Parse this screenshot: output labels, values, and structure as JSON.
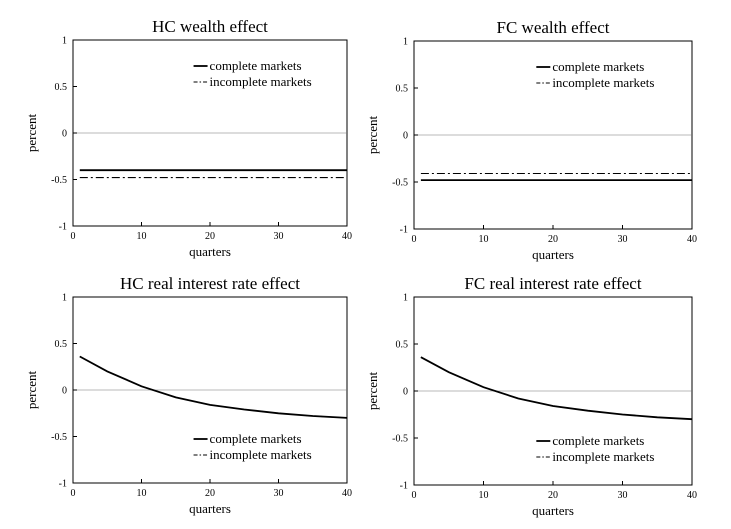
{
  "chart_data": [
    {
      "type": "line",
      "title": "HC wealth effect",
      "xlabel": "quarters",
      "ylabel": "percent",
      "xlim": [
        0,
        40
      ],
      "ylim": [
        -1,
        1
      ],
      "xticks": [
        "0",
        "10",
        "20",
        "30",
        "40"
      ],
      "yticks": [
        "-1",
        "-0.5",
        "0",
        "0.5",
        "1"
      ],
      "legend_position": "top-right",
      "series": [
        {
          "name": "complete markets",
          "style": "solid",
          "x": [
            1,
            40
          ],
          "values": [
            -0.4,
            -0.4
          ]
        },
        {
          "name": "incomplete markets",
          "style": "dashdot",
          "x": [
            1,
            40
          ],
          "values": [
            -0.48,
            -0.48
          ]
        }
      ]
    },
    {
      "type": "line",
      "title": "FC wealth effect",
      "xlabel": "quarters",
      "ylabel": "percent",
      "xlim": [
        0,
        40
      ],
      "ylim": [
        -1,
        1
      ],
      "xticks": [
        "0",
        "10",
        "20",
        "30",
        "40"
      ],
      "yticks": [
        "-1",
        "-0.5",
        "0",
        "0.5",
        "1"
      ],
      "legend_position": "top-right",
      "series": [
        {
          "name": "complete markets",
          "style": "solid",
          "x": [
            1,
            40
          ],
          "values": [
            -0.48,
            -0.48
          ]
        },
        {
          "name": "incomplete markets",
          "style": "dashdot",
          "x": [
            1,
            40
          ],
          "values": [
            -0.41,
            -0.41
          ]
        }
      ]
    },
    {
      "type": "line",
      "title": "HC real interest rate effect",
      "xlabel": "quarters",
      "ylabel": "percent",
      "xlim": [
        0,
        40
      ],
      "ylim": [
        -1,
        1
      ],
      "xticks": [
        "0",
        "10",
        "20",
        "30",
        "40"
      ],
      "yticks": [
        "-1",
        "-0.5",
        "0",
        "0.5",
        "1"
      ],
      "legend_position": "bottom-right",
      "series": [
        {
          "name": "complete markets",
          "style": "solid",
          "x": [
            1,
            5,
            10,
            15,
            20,
            25,
            30,
            35,
            40
          ],
          "values": [
            0.36,
            0.2,
            0.04,
            -0.08,
            -0.16,
            -0.21,
            -0.25,
            -0.28,
            -0.3
          ]
        },
        {
          "name": "incomplete markets",
          "style": "dashdot",
          "x": [
            1,
            5,
            10,
            15,
            20,
            25,
            30,
            35,
            40
          ],
          "values": [
            0.36,
            0.2,
            0.04,
            -0.08,
            -0.16,
            -0.21,
            -0.25,
            -0.28,
            -0.3
          ]
        }
      ]
    },
    {
      "type": "line",
      "title": "FC real interest rate effect",
      "xlabel": "quarters",
      "ylabel": "percent",
      "xlim": [
        0,
        40
      ],
      "ylim": [
        -1,
        1
      ],
      "xticks": [
        "0",
        "10",
        "20",
        "30",
        "40"
      ],
      "yticks": [
        "-1",
        "-0.5",
        "0",
        "0.5",
        "1"
      ],
      "legend_position": "bottom-right",
      "series": [
        {
          "name": "complete markets",
          "style": "solid",
          "x": [
            1,
            5,
            10,
            15,
            20,
            25,
            30,
            35,
            40
          ],
          "values": [
            0.36,
            0.2,
            0.04,
            -0.08,
            -0.16,
            -0.21,
            -0.25,
            -0.28,
            -0.3
          ]
        },
        {
          "name": "incomplete markets",
          "style": "dashdot",
          "x": [
            1,
            5,
            10,
            15,
            20,
            25,
            30,
            35,
            40
          ],
          "values": [
            0.36,
            0.2,
            0.04,
            -0.08,
            -0.16,
            -0.21,
            -0.25,
            -0.28,
            -0.3
          ]
        }
      ]
    }
  ]
}
